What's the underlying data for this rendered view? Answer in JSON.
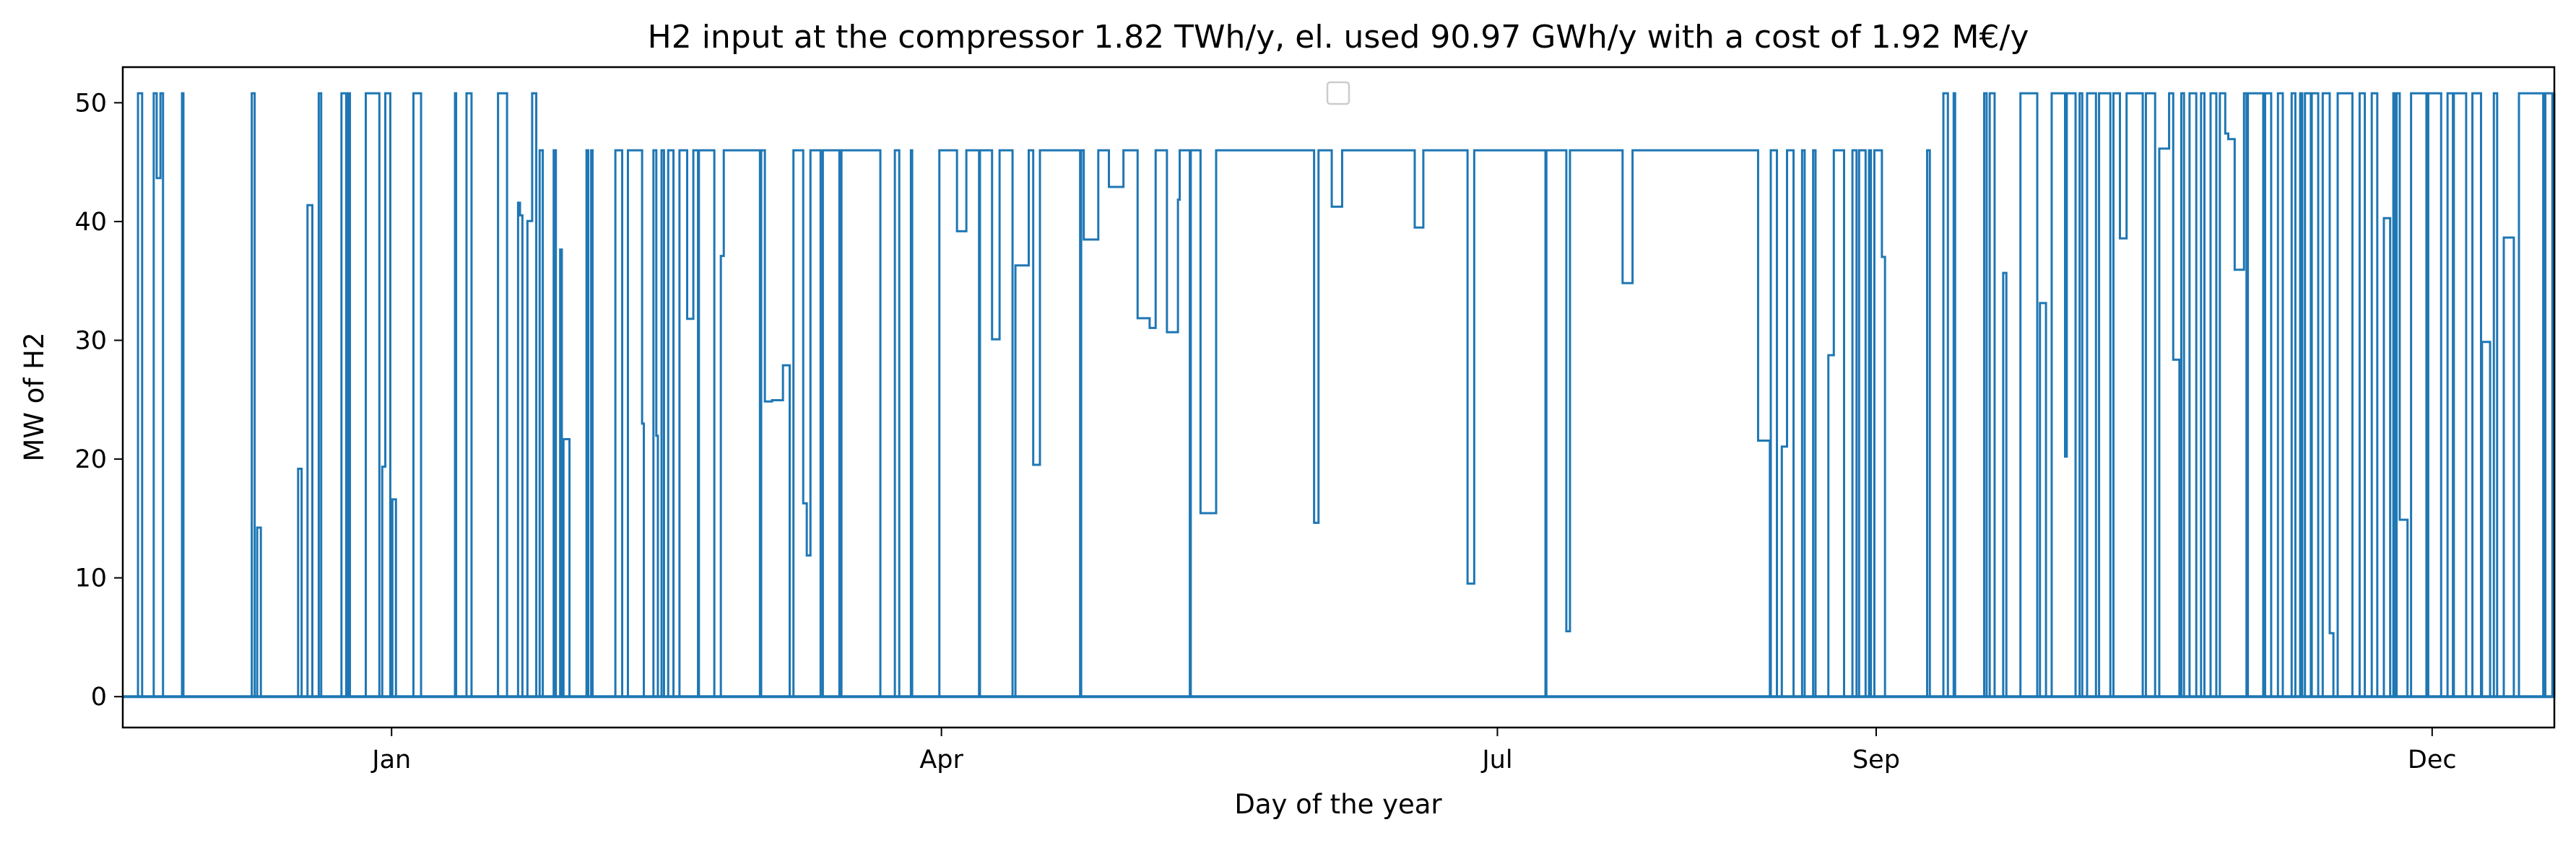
{
  "chart_data": {
    "type": "line",
    "title": "H2 input at the compressor 1.82 TWh/y, el. used 90.97 GWh/y with a cost of 1.92 M€/y",
    "xlabel": "Day of the year",
    "ylabel": "MW of H2",
    "xlim": [
      "2018-11-18",
      "2019-12-21"
    ],
    "ylim": [
      -2.6,
      53.0
    ],
    "x_ticks": [
      {
        "label": "Jan",
        "date": "2019-01-01"
      },
      {
        "label": "Apr",
        "date": "2019-04-01"
      },
      {
        "label": "Jul",
        "date": "2019-07-01"
      },
      {
        "label": "Sep",
        "date": "2019-09-01"
      },
      {
        "label": "Dec",
        "date": "2019-12-01"
      }
    ],
    "y_ticks": [
      0,
      10,
      20,
      30,
      40,
      50
    ],
    "grid": false,
    "legend": "upper-center (empty)",
    "series": [
      {
        "color": "#1f77b4",
        "sampling": "hourly",
        "levels_MW": [
          0,
          46,
          50.8
        ],
        "segments": [
          {
            "from": "2018-11-18",
            "to": "2018-12-10",
            "peak": 50.8,
            "on_fraction": 0.25
          },
          {
            "from": "2018-12-10",
            "to": "2018-12-30",
            "peak": 50.8,
            "on_fraction": 0.35
          },
          {
            "from": "2018-12-30",
            "to": "2019-01-25",
            "peak": 50.8,
            "on_fraction": 0.3
          },
          {
            "from": "2019-01-25",
            "to": "2019-02-25",
            "peak": 46.0,
            "on_fraction": 0.45
          },
          {
            "from": "2019-02-25",
            "to": "2019-03-22",
            "peak": 46.0,
            "on_fraction": 0.7
          },
          {
            "from": "2019-03-22",
            "to": "2019-04-01",
            "peak": 46.0,
            "on_fraction": 0.25
          },
          {
            "from": "2019-04-01",
            "to": "2019-05-10",
            "peak": 46.0,
            "on_fraction": 0.8
          },
          {
            "from": "2019-05-10",
            "to": "2019-08-15",
            "peak": 46.0,
            "on_fraction": 0.92
          },
          {
            "from": "2019-08-15",
            "to": "2019-09-12",
            "peak": 46.0,
            "on_fraction": 0.45
          },
          {
            "from": "2019-09-12",
            "to": "2019-09-25",
            "peak": 50.8,
            "on_fraction": 0.4
          },
          {
            "from": "2019-09-25",
            "to": "2019-12-21",
            "peak": 50.8,
            "on_fraction": 0.55
          }
        ]
      }
    ]
  }
}
